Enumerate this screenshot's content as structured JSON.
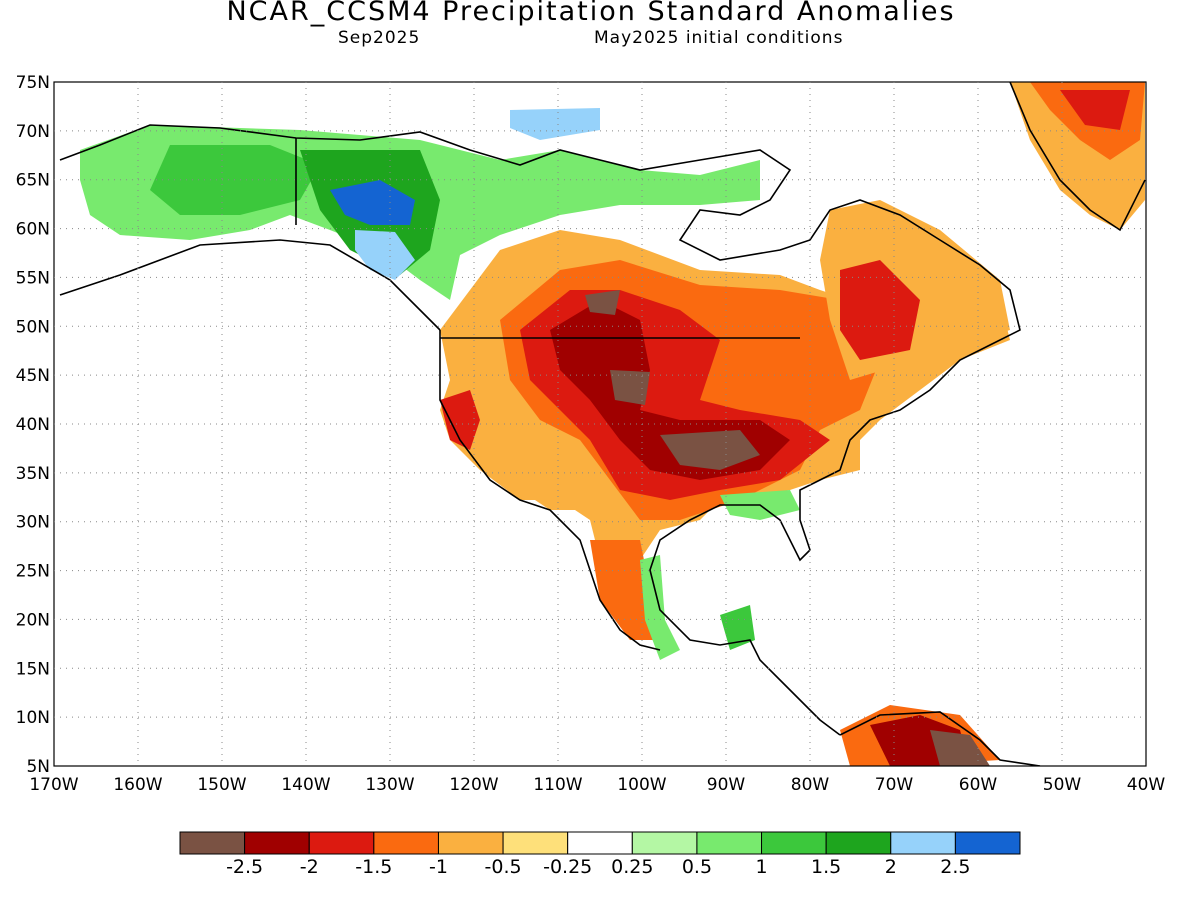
{
  "header": {
    "title": "NCAR_CCSM4 Precipitation Standard Anomalies",
    "target_month": "Sep2025",
    "init_conditions": "May2025 initial conditions"
  },
  "axes": {
    "lat_labels": [
      "75N",
      "70N",
      "65N",
      "60N",
      "55N",
      "50N",
      "45N",
      "40N",
      "35N",
      "30N",
      "25N",
      "20N",
      "15N",
      "10N",
      "5N"
    ],
    "lon_labels": [
      "170W",
      "160W",
      "150W",
      "140W",
      "130W",
      "120W",
      "110W",
      "100W",
      "90W",
      "80W",
      "70W",
      "60W",
      "50W",
      "40W"
    ],
    "lat_range": [
      5,
      75
    ],
    "lon_range": [
      -170,
      -40
    ],
    "grid": "dotted"
  },
  "legend": {
    "placement": "bottom",
    "colors": [
      "#7a5243",
      "#a00000",
      "#dc1a10",
      "#fa6a10",
      "#fab040",
      "#fee07a",
      "#ffffff",
      "#b4f7a4",
      "#78ea6e",
      "#3cc83c",
      "#1ea51e",
      "#96d2fa",
      "#1464d2"
    ],
    "labels": [
      "-2.5",
      "-2",
      "-1.5",
      "-1",
      "-0.5",
      "-0.25",
      "0.25",
      "0.5",
      "1",
      "1.5",
      "2",
      "2.5"
    ]
  },
  "map_regions": [
    {
      "name": "alaska-yukon",
      "anomaly_class": "wet",
      "color": "#3cc83c"
    },
    {
      "name": "yukon-core",
      "anomaly_class": "very-wet",
      "color": "#1464d2"
    },
    {
      "name": "canada-prairies-northern-plains",
      "anomaly_class": "very-dry",
      "color": "#a00000"
    },
    {
      "name": "central-us-ohio-valley",
      "anomaly_class": "very-dry",
      "color": "#7a5243"
    },
    {
      "name": "quebec-eastern-canada",
      "anomaly_class": "dry",
      "color": "#dc1a10"
    },
    {
      "name": "greenland-south",
      "anomaly_class": "dry",
      "color": "#fa6a10"
    },
    {
      "name": "southern-mexico",
      "anomaly_class": "wet",
      "color": "#78ea6e"
    },
    {
      "name": "northern-south-america",
      "anomaly_class": "very-dry",
      "color": "#a00000"
    }
  ]
}
